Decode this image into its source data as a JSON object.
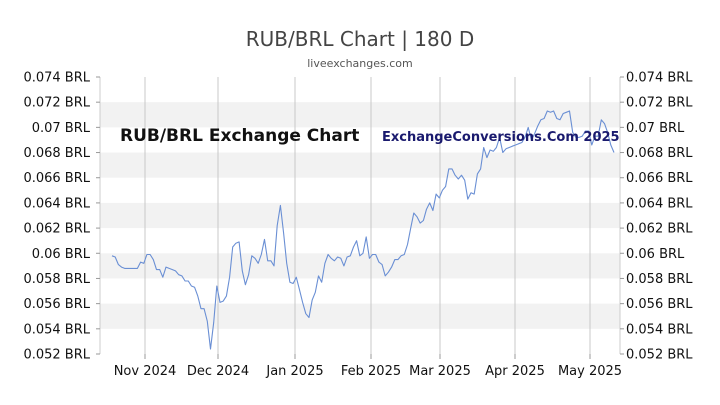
{
  "chart_data": {
    "type": "line",
    "title": "RUB/BRL Chart | 180 D",
    "subtitle": "liveexchanges.com",
    "in_plot_label": "RUB/BRL Exchange Chart",
    "watermark": "ExchangeConversions.Com 2025",
    "xlabel": "",
    "ylabel": "",
    "ylim": [
      0.052,
      0.074
    ],
    "y_ticks": [
      0.052,
      0.054,
      0.056,
      0.058,
      0.06,
      0.062,
      0.064,
      0.066,
      0.068,
      0.07,
      0.072,
      0.074
    ],
    "y_tick_labels": [
      "0.052 BRL",
      "0.054 BRL",
      "0.056 BRL",
      "0.058 BRL",
      "0.06 BRL",
      "0.062 BRL",
      "0.064 BRL",
      "0.066 BRL",
      "0.068 BRL",
      "0.07 BRL",
      "0.072 BRL",
      "0.074 BRL"
    ],
    "x_tick_labels": [
      "Nov 2024",
      "Dec 2024",
      "Jan 2025",
      "Feb 2025",
      "Mar 2025",
      "Apr 2025",
      "May 2025"
    ],
    "grid": "alternating horizontal bands, vertical month lines",
    "series": [
      {
        "color": "#6a8fd4",
        "values": [
          0.0598,
          0.0597,
          0.0591,
          0.0589,
          0.0588,
          0.0588,
          0.0588,
          0.0588,
          0.0588,
          0.0593,
          0.0592,
          0.0599,
          0.0599,
          0.0595,
          0.0587,
          0.0587,
          0.0581,
          0.0589,
          0.0588,
          0.0587,
          0.0586,
          0.0583,
          0.0582,
          0.0578,
          0.0578,
          0.0574,
          0.0573,
          0.0566,
          0.0556,
          0.0556,
          0.0546,
          0.0524,
          0.0545,
          0.0574,
          0.0561,
          0.0562,
          0.0566,
          0.0581,
          0.0605,
          0.0608,
          0.0609,
          0.0586,
          0.0575,
          0.0583,
          0.0598,
          0.0596,
          0.0592,
          0.0599,
          0.0611,
          0.0594,
          0.0594,
          0.059,
          0.0622,
          0.0638,
          0.0616,
          0.0592,
          0.0577,
          0.0576,
          0.0581,
          0.0571,
          0.0561,
          0.0552,
          0.0549,
          0.0563,
          0.0569,
          0.0582,
          0.0577,
          0.0592,
          0.0599,
          0.0596,
          0.0594,
          0.0597,
          0.0596,
          0.059,
          0.0597,
          0.0598,
          0.0605,
          0.061,
          0.0598,
          0.06,
          0.0613,
          0.0596,
          0.0599,
          0.0599,
          0.0593,
          0.0591,
          0.0582,
          0.0585,
          0.0589,
          0.0595,
          0.0595,
          0.0598,
          0.0599,
          0.0607,
          0.062,
          0.0632,
          0.0629,
          0.0624,
          0.0626,
          0.0635,
          0.064,
          0.0634,
          0.0647,
          0.0644,
          0.065,
          0.0653,
          0.0667,
          0.0667,
          0.0662,
          0.0659,
          0.0662,
          0.0658,
          0.0643,
          0.0648,
          0.0647,
          0.0663,
          0.0667,
          0.0684,
          0.0676,
          0.0682,
          0.0681,
          0.0684,
          0.0692,
          0.068,
          0.0683,
          0.0684,
          0.0685,
          0.0686,
          0.0687,
          0.0688,
          0.0692,
          0.07,
          0.069,
          0.0695,
          0.0701,
          0.0706,
          0.0707,
          0.0713,
          0.0712,
          0.0713,
          0.0707,
          0.0706,
          0.0711,
          0.0712,
          0.0713,
          0.0696,
          0.0692,
          0.0692,
          0.0693,
          0.0697,
          0.0697,
          0.0686,
          0.0693,
          0.0693,
          0.0706,
          0.0703,
          0.0696,
          0.0686,
          0.068
        ]
      }
    ]
  }
}
